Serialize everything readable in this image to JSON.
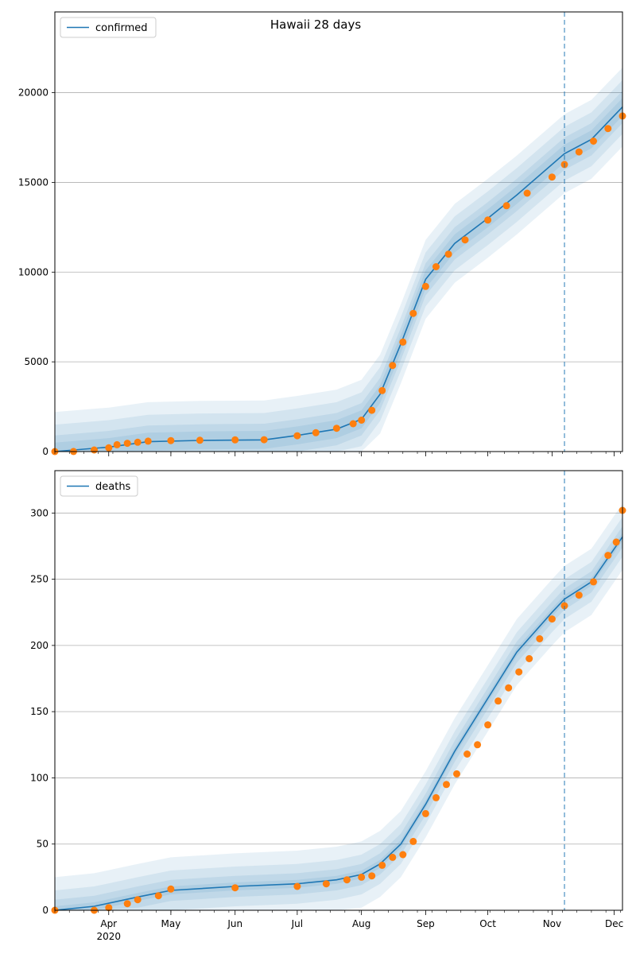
{
  "title": "Hawaii 28 days",
  "colors": {
    "line": "#1f77b4",
    "points": "#ff7f0e",
    "band": "#1f77b4",
    "grid": "#b0b0b0",
    "vline": "#1f77b4"
  },
  "x_axis": {
    "start": "2020-03-06",
    "end": "2020-12-05",
    "month_ticks": [
      {
        "date": "2020-04-01",
        "label": "Apr"
      },
      {
        "date": "2020-05-01",
        "label": "May"
      },
      {
        "date": "2020-06-01",
        "label": "Jun"
      },
      {
        "date": "2020-07-01",
        "label": "Jul"
      },
      {
        "date": "2020-08-01",
        "label": "Aug"
      },
      {
        "date": "2020-09-01",
        "label": "Sep"
      },
      {
        "date": "2020-10-01",
        "label": "Oct"
      },
      {
        "date": "2020-11-01",
        "label": "Nov"
      },
      {
        "date": "2020-12-01",
        "label": "Dec"
      }
    ],
    "year_label": "2020",
    "year_label_under": "Apr",
    "forecast_start": "2020-11-07"
  },
  "chart_data": [
    {
      "type": "line",
      "panel": "top",
      "legend": "confirmed",
      "legend_placement": "top-left",
      "grid": "horizontal",
      "ylim": [
        0,
        24500
      ],
      "yticks": [
        0,
        5000,
        10000,
        15000,
        20000
      ],
      "model_line": [
        [
          "2020-03-06",
          0
        ],
        [
          "2020-04-01",
          250
        ],
        [
          "2020-04-20",
          550
        ],
        [
          "2020-05-15",
          620
        ],
        [
          "2020-06-15",
          650
        ],
        [
          "2020-07-01",
          900
        ],
        [
          "2020-07-20",
          1250
        ],
        [
          "2020-08-01",
          1800
        ],
        [
          "2020-08-10",
          3200
        ],
        [
          "2020-08-20",
          6000
        ],
        [
          "2020-09-01",
          9600
        ],
        [
          "2020-09-15",
          11600
        ],
        [
          "2020-10-01",
          13000
        ],
        [
          "2020-10-15",
          14300
        ],
        [
          "2020-11-07",
          16600
        ],
        [
          "2020-11-20",
          17400
        ],
        [
          "2020-12-05",
          19200
        ]
      ],
      "band_offsets": [
        500,
        900,
        1500,
        2200
      ],
      "observed": [
        [
          "2020-03-06",
          0
        ],
        [
          "2020-03-15",
          5
        ],
        [
          "2020-03-25",
          90
        ],
        [
          "2020-04-01",
          210
        ],
        [
          "2020-04-05",
          380
        ],
        [
          "2020-04-10",
          460
        ],
        [
          "2020-04-15",
          520
        ],
        [
          "2020-04-20",
          580
        ],
        [
          "2020-05-01",
          610
        ],
        [
          "2020-05-15",
          630
        ],
        [
          "2020-06-01",
          650
        ],
        [
          "2020-06-15",
          660
        ],
        [
          "2020-07-01",
          880
        ],
        [
          "2020-07-10",
          1050
        ],
        [
          "2020-07-20",
          1300
        ],
        [
          "2020-07-28",
          1550
        ],
        [
          "2020-08-01",
          1750
        ],
        [
          "2020-08-06",
          2300
        ],
        [
          "2020-08-11",
          3400
        ],
        [
          "2020-08-16",
          4800
        ],
        [
          "2020-08-21",
          6100
        ],
        [
          "2020-08-26",
          7700
        ],
        [
          "2020-09-01",
          9200
        ],
        [
          "2020-09-06",
          10300
        ],
        [
          "2020-09-12",
          11000
        ],
        [
          "2020-09-20",
          11800
        ],
        [
          "2020-10-01",
          12900
        ],
        [
          "2020-10-10",
          13700
        ],
        [
          "2020-10-20",
          14400
        ],
        [
          "2020-11-01",
          15300
        ],
        [
          "2020-11-07",
          16000
        ],
        [
          "2020-11-14",
          16700
        ],
        [
          "2020-11-21",
          17300
        ],
        [
          "2020-11-28",
          18000
        ],
        [
          "2020-12-05",
          18700
        ]
      ]
    },
    {
      "type": "line",
      "panel": "bottom",
      "legend": "deaths",
      "legend_placement": "top-left",
      "grid": "horizontal",
      "ylim": [
        0,
        332
      ],
      "yticks": [
        0,
        50,
        100,
        150,
        200,
        250,
        300
      ],
      "model_line": [
        [
          "2020-03-06",
          0
        ],
        [
          "2020-03-25",
          3
        ],
        [
          "2020-04-15",
          10
        ],
        [
          "2020-05-01",
          15
        ],
        [
          "2020-06-01",
          18
        ],
        [
          "2020-07-01",
          20
        ],
        [
          "2020-07-20",
          23
        ],
        [
          "2020-08-01",
          27
        ],
        [
          "2020-08-10",
          35
        ],
        [
          "2020-08-20",
          50
        ],
        [
          "2020-09-01",
          80
        ],
        [
          "2020-09-15",
          120
        ],
        [
          "2020-10-01",
          160
        ],
        [
          "2020-10-15",
          195
        ],
        [
          "2020-11-01",
          225
        ],
        [
          "2020-11-07",
          235
        ],
        [
          "2020-11-20",
          248
        ],
        [
          "2020-12-05",
          282
        ]
      ],
      "band_offsets": [
        3,
        8,
        15,
        25
      ],
      "observed": [
        [
          "2020-03-06",
          0
        ],
        [
          "2020-03-25",
          0
        ],
        [
          "2020-04-01",
          2
        ],
        [
          "2020-04-10",
          5
        ],
        [
          "2020-04-15",
          8
        ],
        [
          "2020-04-25",
          11
        ],
        [
          "2020-05-01",
          16
        ],
        [
          "2020-06-01",
          17
        ],
        [
          "2020-07-01",
          18
        ],
        [
          "2020-07-15",
          20
        ],
        [
          "2020-07-25",
          23
        ],
        [
          "2020-08-01",
          25
        ],
        [
          "2020-08-06",
          26
        ],
        [
          "2020-08-11",
          34
        ],
        [
          "2020-08-16",
          40
        ],
        [
          "2020-08-21",
          42
        ],
        [
          "2020-08-26",
          52
        ],
        [
          "2020-09-01",
          73
        ],
        [
          "2020-09-06",
          85
        ],
        [
          "2020-09-11",
          95
        ],
        [
          "2020-09-16",
          103
        ],
        [
          "2020-09-21",
          118
        ],
        [
          "2020-09-26",
          125
        ],
        [
          "2020-10-01",
          140
        ],
        [
          "2020-10-06",
          158
        ],
        [
          "2020-10-11",
          168
        ],
        [
          "2020-10-16",
          180
        ],
        [
          "2020-10-21",
          190
        ],
        [
          "2020-10-26",
          205
        ],
        [
          "2020-11-01",
          220
        ],
        [
          "2020-11-07",
          230
        ],
        [
          "2020-11-14",
          238
        ],
        [
          "2020-11-21",
          248
        ],
        [
          "2020-11-28",
          268
        ],
        [
          "2020-12-02",
          278
        ],
        [
          "2020-12-05",
          302
        ]
      ]
    }
  ]
}
